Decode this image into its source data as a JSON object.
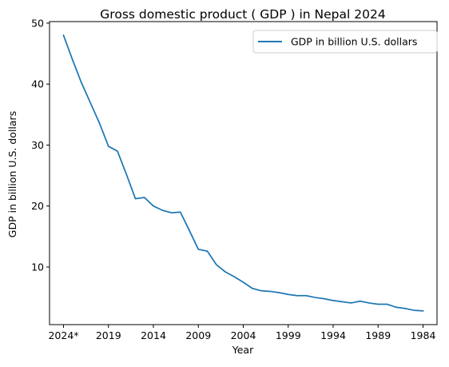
{
  "chart_data": {
    "type": "line",
    "title": "Gross domestic product ( GDP ) in Nepal 2024",
    "xlabel": "Year",
    "ylabel": "GDP in billion U.S. dollars",
    "x": [
      "2024*",
      "2023",
      "2022",
      "2021",
      "2020",
      "2019",
      "2018",
      "2017",
      "2016",
      "2015",
      "2014",
      "2013",
      "2012",
      "2011",
      "2010",
      "2009",
      "2008",
      "2007",
      "2006",
      "2005",
      "2004",
      "2003",
      "2002",
      "2001",
      "2000",
      "1999",
      "1998",
      "1997",
      "1996",
      "1995",
      "1994",
      "1993",
      "1992",
      "1991",
      "1990",
      "1989",
      "1988",
      "1987",
      "1986",
      "1985",
      "1984"
    ],
    "x_ticks": [
      "2024*",
      "2019",
      "2014",
      "2009",
      "2004",
      "1999",
      "1994",
      "1989",
      "1984"
    ],
    "series": [
      {
        "name": "GDP in billion U.S. dollars",
        "color": "#1f77b4",
        "values": [
          48.0,
          44.0,
          40.2,
          36.9,
          33.6,
          29.8,
          29.0,
          25.2,
          21.2,
          21.4,
          20.0,
          19.3,
          18.9,
          19.0,
          16.0,
          12.9,
          12.6,
          10.4,
          9.2,
          8.4,
          7.5,
          6.5,
          6.1,
          6.0,
          5.8,
          5.5,
          5.3,
          5.3,
          5.0,
          4.8,
          4.5,
          4.3,
          4.1,
          4.4,
          4.1,
          3.9,
          3.9,
          3.4,
          3.2,
          2.9,
          2.8
        ]
      }
    ],
    "y_ticks": [
      10,
      20,
      30,
      40,
      50
    ],
    "ylim": [
      0.55,
      50.25
    ],
    "grid": false,
    "legend_position": "top-right"
  }
}
